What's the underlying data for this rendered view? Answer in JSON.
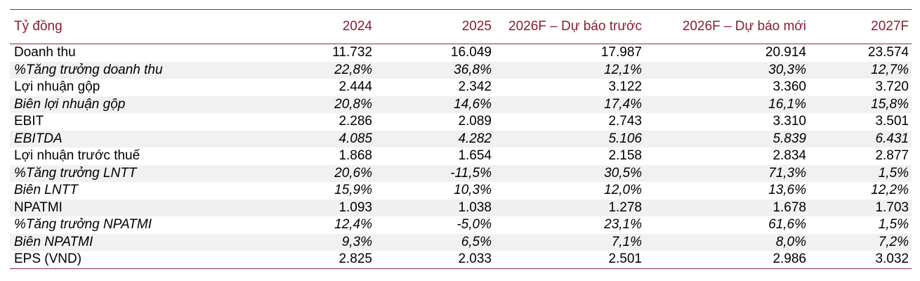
{
  "header": {
    "label": "Tỷ đồng",
    "columns": [
      "2024",
      "2025",
      "2026F – Dự báo trước",
      "2026F – Dự báo mới",
      "2027F"
    ]
  },
  "rows": [
    {
      "label": "Doanh thu",
      "values": [
        "11.732",
        "16.049",
        "17.987",
        "20.914",
        "23.574"
      ],
      "italic": false
    },
    {
      "label": "%Tăng trưởng doanh thu",
      "values": [
        "22,8%",
        "36,8%",
        "12,1%",
        "30,3%",
        "12,7%"
      ],
      "italic": true
    },
    {
      "label": "Lợi nhuận gộp",
      "values": [
        "2.444",
        "2.342",
        "3.122",
        "3.360",
        "3.720"
      ],
      "italic": false
    },
    {
      "label": "Biên lợi nhuận gộp",
      "values": [
        "20,8%",
        "14,6%",
        "17,4%",
        "16,1%",
        "15,8%"
      ],
      "italic": true
    },
    {
      "label": "EBIT",
      "values": [
        "2.286",
        "2.089",
        "2.743",
        "3.310",
        "3.501"
      ],
      "italic": false
    },
    {
      "label": "EBITDA",
      "values": [
        "4.085",
        "4.282",
        "5.106",
        "5.839",
        "6.431"
      ],
      "italic": true
    },
    {
      "label": "Lợi nhuận trước thuế",
      "values": [
        "1.868",
        "1.654",
        "2.158",
        "2.834",
        "2.877"
      ],
      "italic": false
    },
    {
      "label": "%Tăng trưởng LNTT",
      "values": [
        "20,6%",
        "-11,5%",
        "30,5%",
        "71,3%",
        "1,5%"
      ],
      "italic": true
    },
    {
      "label": "Biên LNTT",
      "values": [
        "15,9%",
        "10,3%",
        "12,0%",
        "13,6%",
        "12,2%"
      ],
      "italic": true
    },
    {
      "label": "NPATMI",
      "values": [
        "1.093",
        "1.038",
        "1.278",
        "1.678",
        "1.703"
      ],
      "italic": false
    },
    {
      "label": "%Tăng trưởng NPATMI",
      "values": [
        "12,4%",
        "-5,0%",
        "23,1%",
        "61,6%",
        "1,5%"
      ],
      "italic": true
    },
    {
      "label": "Biên NPATMI",
      "values": [
        "9,3%",
        "6,5%",
        "7,1%",
        "8,0%",
        "7,2%"
      ],
      "italic": true
    },
    {
      "label": "EPS (VND)",
      "values": [
        "2.825",
        "2.033",
        "2.501",
        "2.986",
        "3.032"
      ],
      "italic": false
    }
  ],
  "colors": {
    "header_text": "#8a1c33",
    "rule": "#8a2a3e",
    "shade": "#f1f1f1"
  }
}
